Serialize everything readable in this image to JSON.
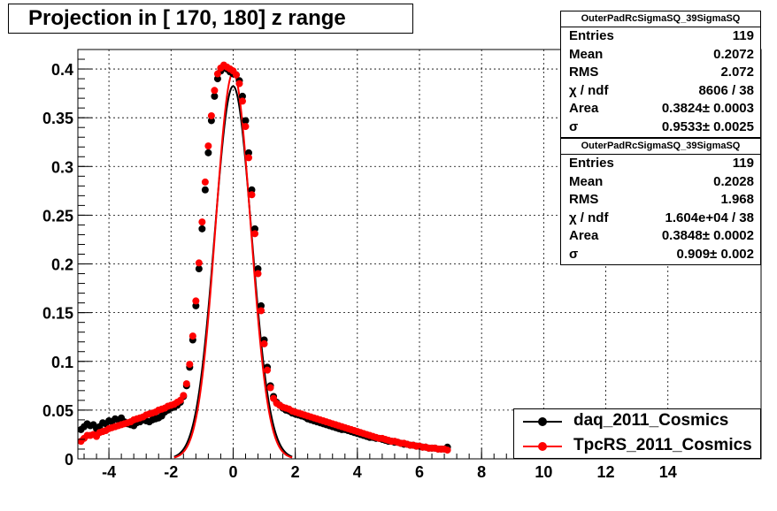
{
  "title": "Projection in [ 170, 180] z range",
  "colors": {
    "daq": "#000000",
    "tpcrs": "#ff0000",
    "grid": "#000000"
  },
  "stats_boxes": [
    {
      "name": "OuterPadRcSigmaSQ_39SigmaSQ",
      "rows": [
        {
          "label": "Entries",
          "value": "119"
        },
        {
          "label": "Mean",
          "value": "0.2072"
        },
        {
          "label": "RMS",
          "value": "2.072"
        },
        {
          "label": "χ  / ndf",
          "value": "8606 / 38"
        },
        {
          "label": "Area",
          "value": "0.3824± 0.0003"
        },
        {
          "label": "σ",
          "value": "0.9533± 0.0025"
        }
      ]
    },
    {
      "name": "OuterPadRcSigmaSQ_39SigmaSQ",
      "rows": [
        {
          "label": "Entries",
          "value": "119"
        },
        {
          "label": "Mean",
          "value": "0.2028"
        },
        {
          "label": "RMS",
          "value": "1.968"
        },
        {
          "label": "χ  / ndf",
          "value": "1.604e+04 / 38"
        },
        {
          "label": "Area",
          "value": "0.3848± 0.0002"
        },
        {
          "label": "σ",
          "value": "0.909± 0.002"
        }
      ]
    }
  ],
  "legend": [
    {
      "label": "daq_2011_Cosmics",
      "color": "#000000"
    },
    {
      "label": "TpcRS_2011_Cosmics",
      "color": "#ff0000"
    }
  ],
  "chart_data": {
    "type": "scatter",
    "title": "Projection in [ 170, 180] z range",
    "xlim": [
      -5,
      17
    ],
    "ylim": [
      0,
      0.42
    ],
    "grid": true,
    "legend_position": "bottom-right",
    "x_ticks": [
      -4,
      -2,
      0,
      2,
      4,
      6,
      8,
      10,
      12,
      14
    ],
    "x_tick_labels": [
      "-4",
      "-2",
      "0",
      "2",
      "4",
      "6",
      "8",
      "10",
      "12",
      "14"
    ],
    "y_ticks": [
      0,
      0.05,
      0.1,
      0.15,
      0.2,
      0.25,
      0.3,
      0.35,
      0.4
    ],
    "y_tick_labels": [
      "0",
      "0.05",
      "0.1",
      "0.15",
      "0.2",
      "0.25",
      "0.3",
      "0.35",
      "0.4"
    ],
    "series": [
      {
        "name": "daq_2011_Cosmics",
        "color": "#000000",
        "fit_sigma": 0.9533,
        "fit_area": 0.3824,
        "x": [
          -4.9,
          -4.8,
          -4.7,
          -4.6,
          -4.5,
          -4.4,
          -4.3,
          -4.2,
          -4.1,
          -4.0,
          -3.9,
          -3.8,
          -3.7,
          -3.6,
          -3.5,
          -3.4,
          -3.3,
          -3.2,
          -3.1,
          -3.0,
          -2.9,
          -2.8,
          -2.7,
          -2.6,
          -2.5,
          -2.4,
          -2.3,
          -2.2,
          -2.1,
          -2.0,
          -1.9,
          -1.8,
          -1.7,
          -1.6,
          -1.5,
          -1.4,
          -1.3,
          -1.2,
          -1.1,
          -1.0,
          -0.9,
          -0.8,
          -0.7,
          -0.6,
          -0.5,
          -0.4,
          -0.3,
          -0.2,
          -0.1,
          0.0,
          0.1,
          0.2,
          0.3,
          0.4,
          0.5,
          0.6,
          0.7,
          0.8,
          0.9,
          1.0,
          1.1,
          1.2,
          1.3,
          1.4,
          1.5,
          1.6,
          1.7,
          1.8,
          1.9,
          2.0,
          2.1,
          2.2,
          2.3,
          2.4,
          2.5,
          2.6,
          2.7,
          2.8,
          2.9,
          3.0,
          3.1,
          3.2,
          3.3,
          3.4,
          3.5,
          3.6,
          3.7,
          3.8,
          3.9,
          4.0,
          4.1,
          4.2,
          4.3,
          4.4,
          4.5,
          4.6,
          4.7,
          4.8,
          4.9,
          5.0,
          5.1,
          5.2,
          5.3,
          5.4,
          5.5,
          5.6,
          5.7,
          5.8,
          5.9,
          6.0,
          6.1,
          6.2,
          6.3,
          6.4,
          6.5,
          6.6,
          6.7,
          6.8,
          6.9
        ],
        "y": [
          0.03,
          0.033,
          0.036,
          0.034,
          0.035,
          0.031,
          0.033,
          0.037,
          0.036,
          0.039,
          0.038,
          0.041,
          0.04,
          0.042,
          0.038,
          0.036,
          0.035,
          0.034,
          0.037,
          0.038,
          0.04,
          0.039,
          0.038,
          0.04,
          0.041,
          0.042,
          0.044,
          0.048,
          0.05,
          0.052,
          0.053,
          0.055,
          0.058,
          0.064,
          0.075,
          0.094,
          0.122,
          0.157,
          0.195,
          0.236,
          0.276,
          0.314,
          0.347,
          0.372,
          0.39,
          0.398,
          0.402,
          0.4,
          0.397,
          0.395,
          0.394,
          0.388,
          0.372,
          0.347,
          0.314,
          0.276,
          0.236,
          0.195,
          0.157,
          0.122,
          0.094,
          0.075,
          0.064,
          0.058,
          0.055,
          0.052,
          0.05,
          0.049,
          0.047,
          0.046,
          0.045,
          0.044,
          0.043,
          0.041,
          0.04,
          0.039,
          0.038,
          0.037,
          0.036,
          0.035,
          0.034,
          0.033,
          0.032,
          0.031,
          0.03,
          0.03,
          0.029,
          0.028,
          0.027,
          0.026,
          0.025,
          0.024,
          0.023,
          0.022,
          0.022,
          0.021,
          0.021,
          0.02,
          0.019,
          0.018,
          0.018,
          0.017,
          0.017,
          0.016,
          0.015,
          0.015,
          0.014,
          0.014,
          0.013,
          0.013,
          0.012,
          0.012,
          0.011,
          0.011,
          0.011,
          0.01,
          0.01,
          0.01,
          0.012
        ]
      },
      {
        "name": "TpcRS_2011_Cosmics",
        "color": "#ff0000",
        "fit_sigma": 0.909,
        "fit_area": 0.3848,
        "x": [
          -4.9,
          -4.8,
          -4.7,
          -4.6,
          -4.5,
          -4.4,
          -4.3,
          -4.2,
          -4.1,
          -4.0,
          -3.9,
          -3.8,
          -3.7,
          -3.6,
          -3.5,
          -3.4,
          -3.3,
          -3.2,
          -3.1,
          -3.0,
          -2.9,
          -2.8,
          -2.7,
          -2.6,
          -2.5,
          -2.4,
          -2.3,
          -2.2,
          -2.1,
          -2.0,
          -1.9,
          -1.8,
          -1.7,
          -1.6,
          -1.5,
          -1.4,
          -1.3,
          -1.2,
          -1.1,
          -1.0,
          -0.9,
          -0.8,
          -0.7,
          -0.6,
          -0.5,
          -0.4,
          -0.3,
          -0.2,
          -0.1,
          0.0,
          0.1,
          0.2,
          0.3,
          0.4,
          0.5,
          0.6,
          0.7,
          0.8,
          0.9,
          1.0,
          1.1,
          1.2,
          1.3,
          1.4,
          1.5,
          1.6,
          1.7,
          1.8,
          1.9,
          2.0,
          2.1,
          2.2,
          2.3,
          2.4,
          2.5,
          2.6,
          2.7,
          2.8,
          2.9,
          3.0,
          3.1,
          3.2,
          3.3,
          3.4,
          3.5,
          3.6,
          3.7,
          3.8,
          3.9,
          4.0,
          4.1,
          4.2,
          4.3,
          4.4,
          4.5,
          4.6,
          4.7,
          4.8,
          4.9,
          5.0,
          5.1,
          5.2,
          5.3,
          5.4,
          5.5,
          5.6,
          5.7,
          5.8,
          5.9,
          6.0,
          6.1,
          6.2,
          6.3,
          6.4,
          6.5,
          6.6,
          6.7,
          6.8,
          6.9
        ],
        "y": [
          0.018,
          0.021,
          0.024,
          0.024,
          0.025,
          0.023,
          0.027,
          0.028,
          0.029,
          0.031,
          0.032,
          0.033,
          0.034,
          0.035,
          0.036,
          0.037,
          0.038,
          0.04,
          0.041,
          0.042,
          0.043,
          0.045,
          0.046,
          0.047,
          0.048,
          0.05,
          0.051,
          0.052,
          0.054,
          0.055,
          0.056,
          0.058,
          0.06,
          0.065,
          0.077,
          0.097,
          0.126,
          0.162,
          0.201,
          0.243,
          0.284,
          0.321,
          0.352,
          0.378,
          0.395,
          0.401,
          0.404,
          0.402,
          0.4,
          0.398,
          0.394,
          0.385,
          0.367,
          0.341,
          0.309,
          0.271,
          0.231,
          0.19,
          0.152,
          0.118,
          0.091,
          0.073,
          0.062,
          0.057,
          0.055,
          0.053,
          0.052,
          0.051,
          0.049,
          0.048,
          0.047,
          0.046,
          0.045,
          0.044,
          0.043,
          0.042,
          0.041,
          0.04,
          0.039,
          0.038,
          0.037,
          0.036,
          0.035,
          0.034,
          0.033,
          0.032,
          0.031,
          0.03,
          0.029,
          0.028,
          0.027,
          0.026,
          0.025,
          0.024,
          0.023,
          0.022,
          0.021,
          0.021,
          0.02,
          0.019,
          0.018,
          0.018,
          0.017,
          0.016,
          0.016,
          0.015,
          0.014,
          0.014,
          0.013,
          0.013,
          0.012,
          0.012,
          0.011,
          0.011,
          0.011,
          0.01,
          0.01,
          0.01,
          0.009
        ]
      }
    ]
  }
}
